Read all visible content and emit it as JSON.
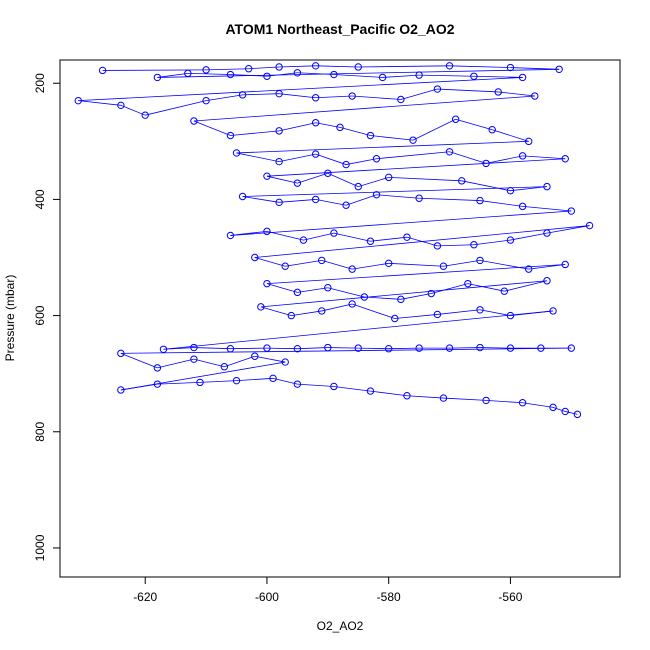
{
  "chart_data": {
    "type": "scatter",
    "mode": "lines+points",
    "title": "ATOM1 Northeast_Pacific O2_AO2",
    "xlabel": "O2_AO2",
    "ylabel": "Pressure (mbar)",
    "xlim": [
      -634,
      -542
    ],
    "ylim": [
      1050,
      160
    ],
    "y_reversed": true,
    "xticks": [
      -620,
      -600,
      -580,
      -560
    ],
    "yticks": [
      200,
      400,
      600,
      800,
      1000
    ],
    "grid": false,
    "color": "#0000ff",
    "marker": "open-circle",
    "series": [
      {
        "name": "",
        "points": [
          [
            -627,
            178
          ],
          [
            -610,
            177
          ],
          [
            -603,
            175
          ],
          [
            -598,
            172
          ],
          [
            -592,
            170
          ],
          [
            -585,
            172
          ],
          [
            -570,
            170
          ],
          [
            -560,
            173
          ],
          [
            -552,
            176
          ],
          [
            -618,
            190
          ],
          [
            -613,
            183
          ],
          [
            -606,
            185
          ],
          [
            -600,
            188
          ],
          [
            -595,
            182
          ],
          [
            -589,
            185
          ],
          [
            -581,
            190
          ],
          [
            -575,
            186
          ],
          [
            -566,
            188
          ],
          [
            -558,
            190
          ],
          [
            -631,
            230
          ],
          [
            -624,
            238
          ],
          [
            -620,
            255
          ],
          [
            -610,
            230
          ],
          [
            -604,
            220
          ],
          [
            -598,
            218
          ],
          [
            -592,
            225
          ],
          [
            -586,
            222
          ],
          [
            -578,
            228
          ],
          [
            -572,
            210
          ],
          [
            -562,
            215
          ],
          [
            -556,
            222
          ],
          [
            -612,
            265
          ],
          [
            -606,
            290
          ],
          [
            -598,
            282
          ],
          [
            -592,
            268
          ],
          [
            -588,
            276
          ],
          [
            -583,
            290
          ],
          [
            -576,
            298
          ],
          [
            -569,
            262
          ],
          [
            -563,
            280
          ],
          [
            -557,
            300
          ],
          [
            -605,
            320
          ],
          [
            -598,
            335
          ],
          [
            -592,
            322
          ],
          [
            -587,
            340
          ],
          [
            -582,
            330
          ],
          [
            -570,
            318
          ],
          [
            -564,
            338
          ],
          [
            -558,
            325
          ],
          [
            -551,
            330
          ],
          [
            -600,
            360
          ],
          [
            -595,
            372
          ],
          [
            -590,
            355
          ],
          [
            -585,
            378
          ],
          [
            -580,
            362
          ],
          [
            -568,
            368
          ],
          [
            -560,
            385
          ],
          [
            -554,
            378
          ],
          [
            -604,
            395
          ],
          [
            -598,
            405
          ],
          [
            -592,
            400
          ],
          [
            -587,
            410
          ],
          [
            -582,
            392
          ],
          [
            -575,
            398
          ],
          [
            -565,
            402
          ],
          [
            -558,
            412
          ],
          [
            -550,
            420
          ],
          [
            -606,
            462
          ],
          [
            -600,
            455
          ],
          [
            -594,
            470
          ],
          [
            -589,
            458
          ],
          [
            -583,
            472
          ],
          [
            -577,
            465
          ],
          [
            -572,
            480
          ],
          [
            -566,
            478
          ],
          [
            -560,
            470
          ],
          [
            -554,
            458
          ],
          [
            -547,
            445
          ],
          [
            -602,
            500
          ],
          [
            -597,
            515
          ],
          [
            -591,
            505
          ],
          [
            -586,
            520
          ],
          [
            -580,
            510
          ],
          [
            -571,
            515
          ],
          [
            -565,
            505
          ],
          [
            -557,
            520
          ],
          [
            -551,
            512
          ],
          [
            -600,
            545
          ],
          [
            -595,
            560
          ],
          [
            -590,
            552
          ],
          [
            -584,
            568
          ],
          [
            -578,
            572
          ],
          [
            -573,
            562
          ],
          [
            -567,
            545
          ],
          [
            -561,
            558
          ],
          [
            -554,
            540
          ],
          [
            -601,
            585
          ],
          [
            -596,
            600
          ],
          [
            -591,
            592
          ],
          [
            -586,
            580
          ],
          [
            -579,
            605
          ],
          [
            -572,
            598
          ],
          [
            -565,
            590
          ],
          [
            -560,
            600
          ],
          [
            -553,
            592
          ],
          [
            -617,
            658
          ],
          [
            -612,
            655
          ],
          [
            -606,
            657
          ],
          [
            -600,
            656
          ],
          [
            -595,
            657
          ],
          [
            -590,
            655
          ],
          [
            -585,
            656
          ],
          [
            -580,
            657
          ],
          [
            -575,
            656
          ],
          [
            -570,
            656
          ],
          [
            -565,
            655
          ],
          [
            -560,
            656
          ],
          [
            -555,
            656
          ],
          [
            -550,
            656
          ],
          [
            -624,
            665
          ],
          [
            -618,
            690
          ],
          [
            -612,
            675
          ],
          [
            -607,
            688
          ],
          [
            -602,
            670
          ],
          [
            -597,
            680
          ],
          [
            -624,
            728
          ],
          [
            -618,
            718
          ],
          [
            -611,
            715
          ],
          [
            -605,
            712
          ],
          [
            -599,
            708
          ],
          [
            -595,
            718
          ],
          [
            -589,
            722
          ],
          [
            -583,
            730
          ],
          [
            -577,
            738
          ],
          [
            -571,
            742
          ],
          [
            -564,
            746
          ],
          [
            -558,
            750
          ],
          [
            -553,
            758
          ],
          [
            -551,
            765
          ],
          [
            -549,
            770
          ]
        ]
      }
    ]
  }
}
